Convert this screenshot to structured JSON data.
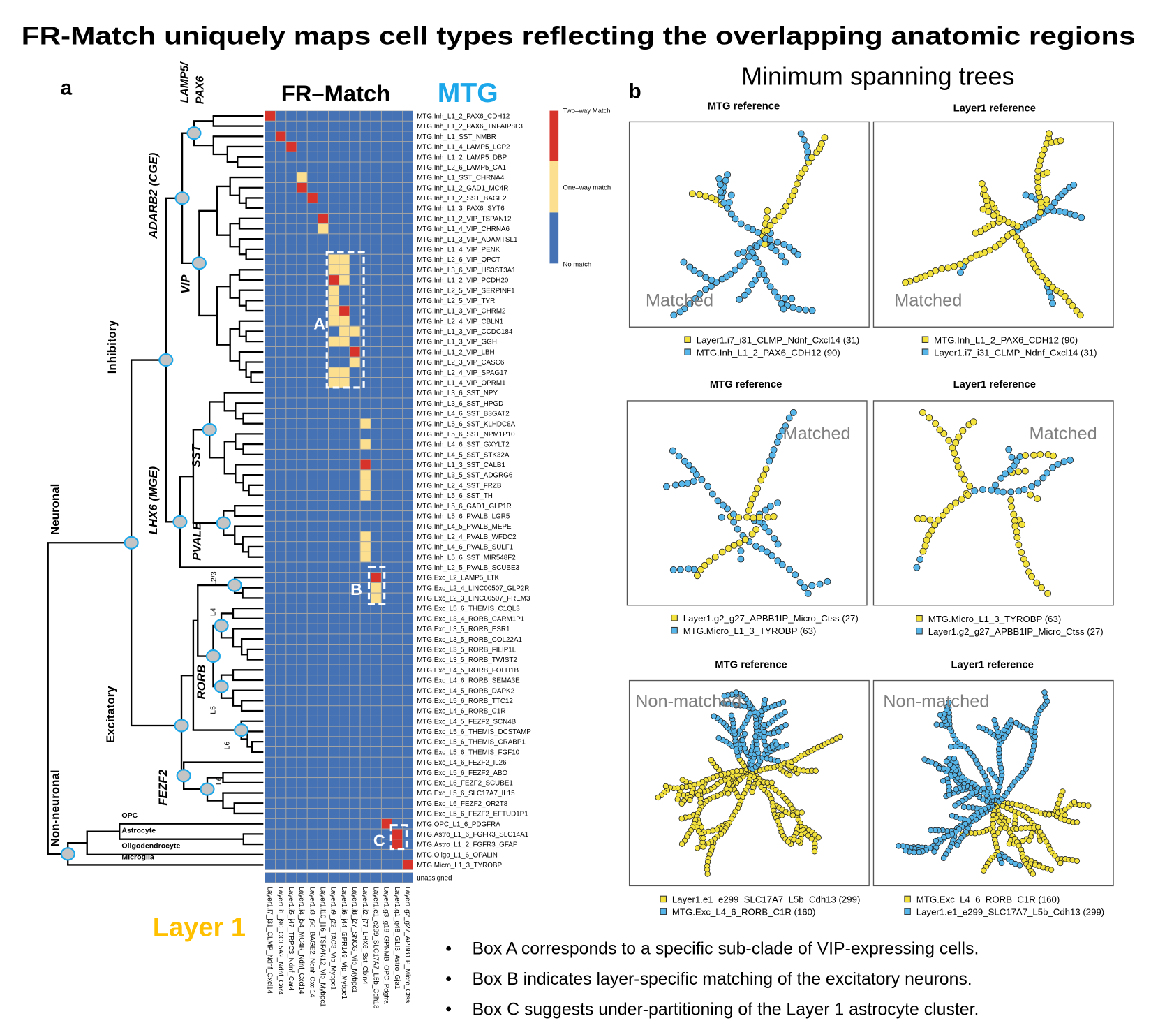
{
  "title": "FR-Match uniquely maps cell types reflecting the overlapping anatomic regions",
  "colors": {
    "two_way": "#d8332a",
    "one_way": "#fde08f",
    "no_match": "#4472b5",
    "grid": "#a3a3a3",
    "mtg": "#1ba7ea",
    "layer1": "#ffc000",
    "point_yellow": "#f3e23b",
    "point_blue": "#56b5e9",
    "node_fill": "#c4c4c4",
    "node_stroke": "#1ba7ea",
    "annotation": "#808080"
  },
  "panel_a": {
    "label": "a",
    "heatmap_title": "FR–Match",
    "reference_label": "MTG",
    "query_label": "Layer 1",
    "legend": {
      "two_way": "Two–way Match",
      "one_way": "One–way match",
      "no_match": "No match"
    },
    "dendrogram_labels": [
      "LAMP5/",
      "PAX6",
      "ADARB2 (CGE)",
      "VIP",
      "Inhibitory",
      "LHX6 (MGE)",
      "SST",
      "PVALB",
      "Neuronal",
      "Excitatory",
      "RORB",
      "FEZF2",
      "Non-neuronal",
      "L2/3",
      "L4",
      "L5",
      "L6",
      "L6",
      "OPC",
      "Astrocyte",
      "Oligodendrocyte",
      "Microglia"
    ],
    "box_labels": [
      "A",
      "B",
      "C"
    ]
  },
  "panel_b": {
    "label": "b",
    "title": "Minimum spanning trees"
  },
  "notes": [
    "Box A corresponds to a specific sub-clade of VIP-expressing cells.",
    "Box B indicates layer-specific matching of the excitatory neurons.",
    "Box C suggests under-partitioning of the Layer 1 astrocyte cluster."
  ],
  "chart_data": [
    {
      "type": "heatmap",
      "value_legend": {
        "0": "No match",
        "1": "One–way match",
        "2": "Two–way Match"
      },
      "columns": [
        "Layer1.i7_j31_CLMP_Ndnf_Cxcl14",
        "Layer1.i1_j90_COL5A2_Ndnf_Car4",
        "Layer1.i5_j47_TRPC3_Ndnf_Car4",
        "Layer1.i4_j54_MC4R_Ndnf_Cxcl14",
        "Layer1.i3_j56_BAGE2_Ndnf_Cxcl14",
        "Layer1.i10_j16_TSPAN12_Vip_Mybpc1",
        "Layer1.i9_j22_TAC3_Vip_Mybpc1",
        "Layer1.i6_j44_GPR149_Vip_Mybpc1",
        "Layer1.i8_j27_SNCG_Vip_Mybpc1",
        "Layer1.i2_j77_LHX6_Sst_Cbln4",
        "Layer1.e1_e299_SLC17A7_L5b_Cdh13",
        "Layer1.g3_g18_GPNMB_OPC_Pdgfra",
        "Layer1.g1_g48_GLI3_Astro_Gja1",
        "Layer1.g2_g27_APBB1IP_Micro_Ctss"
      ],
      "rows": [
        {
          "label": "MTG.Inh_L1_2_PAX6_CDH12",
          "values": "20000000000000"
        },
        {
          "label": "MTG.Inh_L1_2_PAX6_TNFAIP8L3",
          "values": "00000000000000"
        },
        {
          "label": "MTG.Inh_L1_SST_NMBR",
          "values": "02000000000000"
        },
        {
          "label": "MTG.Inh_L1_4_LAMP5_LCP2",
          "values": "00200000000000"
        },
        {
          "label": "MTG.Inh_L1_2_LAMP5_DBP",
          "values": "00000000000000"
        },
        {
          "label": "MTG.Inh_L2_6_LAMP5_CA1",
          "values": "00000000000000"
        },
        {
          "label": "MTG.Inh_L1_SST_CHRNA4",
          "values": "00010000000000"
        },
        {
          "label": "MTG.Inh_L1_2_GAD1_MC4R",
          "values": "00020000000000"
        },
        {
          "label": "MTG.Inh_L1_2_SST_BAGE2",
          "values": "00002000000000"
        },
        {
          "label": "MTG.Inh_L1_3_PAX6_SYT6",
          "values": "00000000000000"
        },
        {
          "label": "MTG.Inh_L1_2_VIP_TSPAN12",
          "values": "00000200000000"
        },
        {
          "label": "MTG.Inh_L1_4_VIP_CHRNA6",
          "values": "00000100000000"
        },
        {
          "label": "MTG.Inh_L1_3_VIP_ADAMTSL1",
          "values": "00000000000000"
        },
        {
          "label": "MTG.Inh_L1_4_VIP_PENK",
          "values": "00000000000000"
        },
        {
          "label": "MTG.Inh_L2_6_VIP_QPCT",
          "values": "00000011000000"
        },
        {
          "label": "MTG.Inh_L3_6_VIP_HS3ST3A1",
          "values": "00000011000000"
        },
        {
          "label": "MTG.Inh_L1_2_VIP_PCDH20",
          "values": "00000021000000"
        },
        {
          "label": "MTG.Inh_L2_5_VIP_SERPINF1",
          "values": "00000010000000"
        },
        {
          "label": "MTG.Inh_L2_5_VIP_TYR",
          "values": "00000010000000"
        },
        {
          "label": "MTG.Inh_L1_3_VIP_CHRM2",
          "values": "00000012000000"
        },
        {
          "label": "MTG.Inh_L2_4_VIP_CBLN1",
          "values": "00000011000000"
        },
        {
          "label": "MTG.Inh_L1_3_VIP_CCDC184",
          "values": "00000001100000"
        },
        {
          "label": "MTG.Inh_L1_3_VIP_GGH",
          "values": "00000011000000"
        },
        {
          "label": "MTG.Inh_L1_2_VIP_LBH",
          "values": "00000000200000"
        },
        {
          "label": "MTG.Inh_L2_3_VIP_CASC6",
          "values": "00000000100000"
        },
        {
          "label": "MTG.Inh_L2_4_VIP_SPAG17",
          "values": "00000011000000"
        },
        {
          "label": "MTG.Inh_L1_4_VIP_OPRM1",
          "values": "00000011000000"
        },
        {
          "label": "MTG.Inh_L3_6_SST_NPY",
          "values": "00000000000000"
        },
        {
          "label": "MTG.Inh_L3_6_SST_HPGD",
          "values": "00000000000000"
        },
        {
          "label": "MTG.Inh_L4_6_SST_B3GAT2",
          "values": "00000000000000"
        },
        {
          "label": "MTG.Inh_L5_6_SST_KLHDC8A",
          "values": "00000000010000"
        },
        {
          "label": "MTG.Inh_L5_6_SST_NPM1P10",
          "values": "00000000000000"
        },
        {
          "label": "MTG.Inh_L4_6_SST_GXYLT2",
          "values": "00000000010000"
        },
        {
          "label": "MTG.Inh_L4_5_SST_STK32A",
          "values": "00000000000000"
        },
        {
          "label": "MTG.Inh_L1_3_SST_CALB1",
          "values": "00000000020000"
        },
        {
          "label": "MTG.Inh_L3_5_SST_ADGRG6",
          "values": "00000000010000"
        },
        {
          "label": "MTG.Inh_L2_4_SST_FRZB",
          "values": "00000000010000"
        },
        {
          "label": "MTG.Inh_L5_6_SST_TH",
          "values": "00000000010000"
        },
        {
          "label": "MTG.Inh_L5_6_GAD1_GLP1R",
          "values": "00000000000000"
        },
        {
          "label": "MTG.Inh_L5_6_PVALB_LGR5",
          "values": "00000000000000"
        },
        {
          "label": "MTG.Inh_L4_5_PVALB_MEPE",
          "values": "00000000000000"
        },
        {
          "label": "MTG.Inh_L2_4_PVALB_WFDC2",
          "values": "00000000010000"
        },
        {
          "label": "MTG.Inh_L4_6_PVALB_SULF1",
          "values": "00000000010000"
        },
        {
          "label": "MTG.Inh_L5_6_SST_MIR548F2",
          "values": "00000000010000"
        },
        {
          "label": "MTG.Inh_L2_5_PVALB_SCUBE3",
          "values": "00000000000000"
        },
        {
          "label": "MTG.Exc_L2_LAMP5_LTK",
          "values": "00000000002000"
        },
        {
          "label": "MTG.Exc_L2_4_LINC00507_GLP2R",
          "values": "00000000001000"
        },
        {
          "label": "MTG.Exc_L2_3_LINC00507_FREM3",
          "values": "00000000001000"
        },
        {
          "label": "MTG.Exc_L5_6_THEMIS_C1QL3",
          "values": "00000000000000"
        },
        {
          "label": "MTG.Exc_L3_4_RORB_CARM1P1",
          "values": "00000000000000"
        },
        {
          "label": "MTG.Exc_L3_5_RORB_ESR1",
          "values": "00000000000000"
        },
        {
          "label": "MTG.Exc_L3_5_RORB_COL22A1",
          "values": "00000000000000"
        },
        {
          "label": "MTG.Exc_L3_5_RORB_FILIP1L",
          "values": "00000000000000"
        },
        {
          "label": "MTG.Exc_L3_5_RORB_TWIST2",
          "values": "00000000000000"
        },
        {
          "label": "MTG.Exc_L4_5_RORB_FOLH1B",
          "values": "00000000000000"
        },
        {
          "label": "MTG.Exc_L4_6_RORB_SEMA3E",
          "values": "00000000000000"
        },
        {
          "label": "MTG.Exc_L4_5_RORB_DAPK2",
          "values": "00000000000000"
        },
        {
          "label": "MTG.Exc_L5_6_RORB_TTC12",
          "values": "00000000000000"
        },
        {
          "label": "MTG.Exc_L4_6_RORB_C1R",
          "values": "00000000000000"
        },
        {
          "label": "MTG.Exc_L4_5_FEZF2_SCN4B",
          "values": "00000000000000"
        },
        {
          "label": "MTG.Exc_L5_6_THEMIS_DCSTAMP",
          "values": "00000000000000"
        },
        {
          "label": "MTG.Exc_L5_6_THEMIS_CRABP1",
          "values": "00000000000000"
        },
        {
          "label": "MTG.Exc_L5_6_THEMIS_FGF10",
          "values": "00000000000000"
        },
        {
          "label": "MTG.Exc_L4_6_FEZF2_IL26",
          "values": "00000000000000"
        },
        {
          "label": "MTG.Exc_L5_6_FEZF2_ABO",
          "values": "00000000000000"
        },
        {
          "label": "MTG.Exc_L6_FEZF2_SCUBE1",
          "values": "00000000000000"
        },
        {
          "label": "MTG.Exc_L5_6_SLC17A7_IL15",
          "values": "00000000000000"
        },
        {
          "label": "MTG.Exc_L6_FEZF2_OR2T8",
          "values": "00000000000000"
        },
        {
          "label": "MTG.Exc_L5_6_FEZF2_EFTUD1P1",
          "values": "00000000000000"
        },
        {
          "label": "MTG.OPC_L1_6_PDGFRA",
          "values": "00000000000200"
        },
        {
          "label": "MTG.Astro_L1_6_FGFR3_SLC14A1",
          "values": "00000000000020"
        },
        {
          "label": "MTG.Astro_L1_2_FGFR3_GFAP",
          "values": "00000000000020"
        },
        {
          "label": "MTG.Oligo_L1_6_OPALIN",
          "values": "00000000000000"
        },
        {
          "label": "MTG.Micro_L1_3_TYROBP",
          "values": "00000000000002"
        }
      ],
      "unassigned_row": {
        "label": "unassigned",
        "values": "00000000000000"
      }
    },
    {
      "type": "scatter",
      "kind": "minimum spanning tree",
      "title": "MTG reference",
      "annotation": "Matched",
      "legend": [
        {
          "name": "Layer1.i7_i31_CLMP_Ndnf_Cxcl14 (31)",
          "color": "yellow",
          "n": 31
        },
        {
          "name": "MTG.Inh_L1_2_PAX6_CDH12 (90)",
          "color": "blue",
          "n": 90
        }
      ]
    },
    {
      "type": "scatter",
      "kind": "minimum spanning tree",
      "title": "Layer1 reference",
      "annotation": "Matched",
      "legend": [
        {
          "name": "MTG.Inh_L1_2_PAX6_CDH12 (90)",
          "color": "yellow",
          "n": 90
        },
        {
          "name": "Layer1.i7_i31_CLMP_Ndnf_Cxcl14 (31)",
          "color": "blue",
          "n": 31
        }
      ]
    },
    {
      "type": "scatter",
      "kind": "minimum spanning tree",
      "title": "MTG reference",
      "annotation": "Matched",
      "legend": [
        {
          "name": "Layer1.g2_g27_APBB1IP_Micro_Ctss (27)",
          "color": "yellow",
          "n": 27
        },
        {
          "name": "MTG.Micro_L1_3_TYROBP (63)",
          "color": "blue",
          "n": 63
        }
      ]
    },
    {
      "type": "scatter",
      "kind": "minimum spanning tree",
      "title": "Layer1 reference",
      "annotation": "Matched",
      "legend": [
        {
          "name": "MTG.Micro_L1_3_TYROBP (63)",
          "color": "yellow",
          "n": 63
        },
        {
          "name": "Layer1.g2_g27_APBB1IP_Micro_Ctss (27)",
          "color": "blue",
          "n": 27
        }
      ]
    },
    {
      "type": "scatter",
      "kind": "minimum spanning tree",
      "title": "MTG reference",
      "annotation": "Non-matched",
      "legend": [
        {
          "name": "Layer1.e1_e299_SLC17A7_L5b_Cdh13 (299)",
          "color": "yellow",
          "n": 299
        },
        {
          "name": "MTG.Exc_L4_6_RORB_C1R (160)",
          "color": "blue",
          "n": 160
        }
      ]
    },
    {
      "type": "scatter",
      "kind": "minimum spanning tree",
      "title": "Layer1 reference",
      "annotation": "Non-matched",
      "legend": [
        {
          "name": "MTG.Exc_L4_6_RORB_C1R (160)",
          "color": "yellow",
          "n": 160
        },
        {
          "name": "Layer1.e1_e299_SLC17A7_L5b_Cdh13 (299)",
          "color": "blue",
          "n": 299
        }
      ]
    }
  ]
}
